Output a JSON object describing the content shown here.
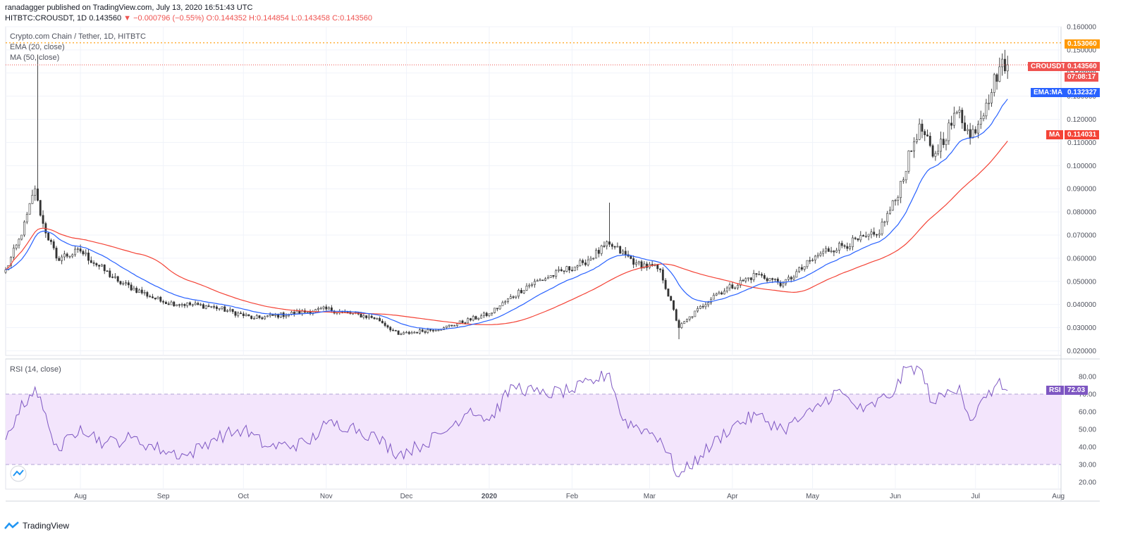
{
  "header": {
    "line1": "ranadagger published on TradingView.com, July 13, 2020 16:51:43 UTC",
    "symbol": "HITBTC:CROUSDT, 1D",
    "last": "0.143560",
    "arrow": "▼",
    "change": "−0.000796 (−0.55%)",
    "open": "O:0.144352",
    "high": "H:0.144854",
    "low": "L:0.143458",
    "close": "C:0.143560"
  },
  "legend": {
    "title": "Crypto.com Chain / Tether, 1D, HITBTC",
    "ema": "EMA (20, close)",
    "ma": "MA (50, close)",
    "rsi": "RSI (14, close)"
  },
  "tags": {
    "level": "0.153060",
    "crousdt": "CROUSDT",
    "crousdt_val": "0.143560",
    "countdown": "07:08:17",
    "ema_ma": "EMA:MA",
    "ema_val": "0.132327",
    "ma": "MA",
    "ma_val": "0.114031",
    "rsi": "RSI",
    "rsi_val": "72.03"
  },
  "footer": {
    "brand": "TradingView"
  },
  "colors": {
    "up": "#26a69a",
    "down": "#ef5350",
    "candle_body_up": "#4caf50",
    "ema": "#2962ff",
    "ma": "#f44336",
    "rsi": "#7e57c2",
    "rsi_band": "#f3e5fc",
    "level_line": "#ff9800",
    "price_line": "#ef5350"
  },
  "chart_data": [
    {
      "type": "candlestick",
      "title": "Crypto.com Chain / Tether, 1D, HITBTC",
      "ylim": [
        0.018,
        0.16
      ],
      "y_ticks": [
        "0.020000",
        "0.030000",
        "0.040000",
        "0.050000",
        "0.060000",
        "0.070000",
        "0.080000",
        "0.090000",
        "0.100000",
        "0.110000",
        "0.120000",
        "0.130000",
        "0.140000",
        "0.150000",
        "0.160000"
      ],
      "x_ticks": [
        "Aug",
        "Sep",
        "Oct",
        "Nov",
        "Dec",
        "2020",
        "Feb",
        "Mar",
        "Apr",
        "May",
        "Jun",
        "Jul",
        "Aug"
      ],
      "x_range": [
        "2019-07-04",
        "2020-08-02"
      ],
      "key_points": [
        {
          "date": "2019-07-04",
          "close": 0.055
        },
        {
          "date": "2019-07-10",
          "close": 0.07
        },
        {
          "date": "2019-07-15",
          "close": 0.09
        },
        {
          "date": "2019-07-16",
          "high": 0.148,
          "close": 0.085
        },
        {
          "date": "2019-07-18",
          "close": 0.075
        },
        {
          "date": "2019-07-23",
          "close": 0.06
        },
        {
          "date": "2019-08-01",
          "close": 0.063
        },
        {
          "date": "2019-08-15",
          "close": 0.05
        },
        {
          "date": "2019-09-01",
          "close": 0.041
        },
        {
          "date": "2019-09-20",
          "close": 0.039
        },
        {
          "date": "2019-10-05",
          "close": 0.034
        },
        {
          "date": "2019-11-01",
          "close": 0.038
        },
        {
          "date": "2019-11-20",
          "close": 0.034
        },
        {
          "date": "2019-11-28",
          "close": 0.027
        },
        {
          "date": "2019-12-15",
          "close": 0.03
        },
        {
          "date": "2020-01-01",
          "close": 0.036
        },
        {
          "date": "2020-01-15",
          "close": 0.048
        },
        {
          "date": "2020-02-05",
          "close": 0.058
        },
        {
          "date": "2020-02-15",
          "high": 0.084,
          "close": 0.066
        },
        {
          "date": "2020-02-25",
          "close": 0.058
        },
        {
          "date": "2020-03-05",
          "close": 0.055
        },
        {
          "date": "2020-03-12",
          "low": 0.025,
          "close": 0.03
        },
        {
          "date": "2020-03-25",
          "close": 0.044
        },
        {
          "date": "2020-04-10",
          "close": 0.053
        },
        {
          "date": "2020-04-20",
          "close": 0.049
        },
        {
          "date": "2020-05-05",
          "close": 0.063
        },
        {
          "date": "2020-05-25",
          "close": 0.07
        },
        {
          "date": "2020-06-01",
          "close": 0.085
        },
        {
          "date": "2020-06-10",
          "close": 0.118
        },
        {
          "date": "2020-06-15",
          "close": 0.104
        },
        {
          "date": "2020-06-25",
          "close": 0.124
        },
        {
          "date": "2020-06-29",
          "close": 0.112
        },
        {
          "date": "2020-07-05",
          "close": 0.127
        },
        {
          "date": "2020-07-11",
          "close": 0.146
        },
        {
          "date": "2020-07-13",
          "close": 0.14356
        }
      ],
      "series": [
        {
          "name": "EMA (20, close)",
          "last": 0.132327
        },
        {
          "name": "MA (50, close)",
          "last": 0.114031
        }
      ],
      "horizontal_level": 0.15306
    },
    {
      "type": "line",
      "title": "RSI (14, close)",
      "ylim": [
        18,
        88
      ],
      "y_ticks": [
        "20.00",
        "30.00",
        "40.00",
        "50.00",
        "60.00",
        "70.00",
        "80.00"
      ],
      "band": [
        30,
        70
      ],
      "points": [
        {
          "date": "2019-07-04",
          "value": 44
        },
        {
          "date": "2019-07-08",
          "value": 58
        },
        {
          "date": "2019-07-15",
          "value": 74
        },
        {
          "date": "2019-07-20",
          "value": 52
        },
        {
          "date": "2019-07-24",
          "value": 38
        },
        {
          "date": "2019-08-01",
          "value": 52
        },
        {
          "date": "2019-08-10",
          "value": 42
        },
        {
          "date": "2019-08-20",
          "value": 45
        },
        {
          "date": "2019-09-01",
          "value": 38
        },
        {
          "date": "2019-09-10",
          "value": 35
        },
        {
          "date": "2019-09-20",
          "value": 45
        },
        {
          "date": "2019-10-01",
          "value": 50
        },
        {
          "date": "2019-10-10",
          "value": 40
        },
        {
          "date": "2019-10-25",
          "value": 42
        },
        {
          "date": "2019-11-01",
          "value": 53
        },
        {
          "date": "2019-11-10",
          "value": 52
        },
        {
          "date": "2019-11-20",
          "value": 45
        },
        {
          "date": "2019-11-28",
          "value": 36
        },
        {
          "date": "2019-12-05",
          "value": 40
        },
        {
          "date": "2019-12-15",
          "value": 48
        },
        {
          "date": "2019-12-25",
          "value": 62
        },
        {
          "date": "2020-01-01",
          "value": 55
        },
        {
          "date": "2020-01-10",
          "value": 75
        },
        {
          "date": "2020-01-20",
          "value": 70
        },
        {
          "date": "2020-02-01",
          "value": 72
        },
        {
          "date": "2020-02-10",
          "value": 78
        },
        {
          "date": "2020-02-15",
          "value": 82
        },
        {
          "date": "2020-02-20",
          "value": 55
        },
        {
          "date": "2020-02-28",
          "value": 50
        },
        {
          "date": "2020-03-05",
          "value": 45
        },
        {
          "date": "2020-03-12",
          "value": 23
        },
        {
          "date": "2020-03-20",
          "value": 35
        },
        {
          "date": "2020-04-01",
          "value": 52
        },
        {
          "date": "2020-04-10",
          "value": 58
        },
        {
          "date": "2020-04-20",
          "value": 50
        },
        {
          "date": "2020-05-01",
          "value": 60
        },
        {
          "date": "2020-05-10",
          "value": 72
        },
        {
          "date": "2020-05-20",
          "value": 60
        },
        {
          "date": "2020-06-01",
          "value": 72
        },
        {
          "date": "2020-06-05",
          "value": 85
        },
        {
          "date": "2020-06-10",
          "value": 85
        },
        {
          "date": "2020-06-15",
          "value": 65
        },
        {
          "date": "2020-06-25",
          "value": 75
        },
        {
          "date": "2020-06-29",
          "value": 55
        },
        {
          "date": "2020-07-05",
          "value": 68
        },
        {
          "date": "2020-07-09",
          "value": 76
        },
        {
          "date": "2020-07-13",
          "value": 72.03
        }
      ]
    }
  ]
}
